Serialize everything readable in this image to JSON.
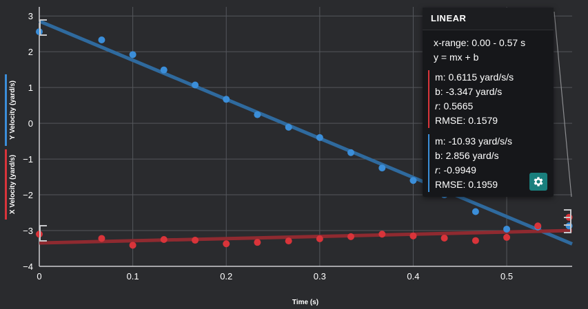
{
  "chart_data": {
    "type": "scatter",
    "xlabel": "Time (s)",
    "xlim": [
      0,
      0.57
    ],
    "ylim": [
      -4,
      3.1
    ],
    "x_ticks": [
      "0",
      "0.1",
      "0.2",
      "0.3",
      "0.4",
      "0.5"
    ],
    "y_ticks": [
      "3",
      "2",
      "1",
      "0",
      "−1",
      "−2",
      "−3",
      "−4"
    ],
    "grid": true,
    "series": [
      {
        "name": "Y Velocity  (yard/s)",
        "color": "#3b8ed9",
        "points": [
          [
            0.0,
            2.56
          ],
          [
            0.0667,
            2.33
          ],
          [
            0.1,
            1.92
          ],
          [
            0.1333,
            1.49
          ],
          [
            0.1667,
            1.07
          ],
          [
            0.2,
            0.67
          ],
          [
            0.2333,
            0.24
          ],
          [
            0.2667,
            -0.11
          ],
          [
            0.3,
            -0.4
          ],
          [
            0.3333,
            -0.82
          ],
          [
            0.3667,
            -1.25
          ],
          [
            0.4,
            -1.6
          ],
          [
            0.4333,
            -2.0
          ],
          [
            0.4667,
            -2.47
          ],
          [
            0.5,
            -2.96
          ],
          [
            0.5333,
            -2.9
          ],
          [
            0.5667,
            -2.87
          ]
        ],
        "fit": {
          "m": -10.93,
          "b": 2.856
        }
      },
      {
        "name": "X Velocity  (yard/s)",
        "color": "#d9343a",
        "points": [
          [
            0.0,
            -3.1
          ],
          [
            0.0667,
            -3.22
          ],
          [
            0.1,
            -3.41
          ],
          [
            0.1333,
            -3.25
          ],
          [
            0.1667,
            -3.27
          ],
          [
            0.2,
            -3.37
          ],
          [
            0.2333,
            -3.33
          ],
          [
            0.2667,
            -3.29
          ],
          [
            0.3,
            -3.23
          ],
          [
            0.3333,
            -3.17
          ],
          [
            0.3667,
            -3.1
          ],
          [
            0.4,
            -3.15
          ],
          [
            0.4333,
            -3.21
          ],
          [
            0.4667,
            -3.28
          ],
          [
            0.5,
            -3.19
          ],
          [
            0.5333,
            -2.87
          ],
          [
            0.5667,
            -2.63
          ]
        ],
        "fit": {
          "m": 0.6115,
          "b": -3.347
        }
      }
    ]
  },
  "panel": {
    "title": "LINEAR",
    "range": "x-range: 0.00 - 0.57 s",
    "equation": "y = mx + b",
    "fits": [
      {
        "m": "m: 0.6115 yard/s/s",
        "b": "b: -3.347 yard/s",
        "r_label": "r",
        "r_value": ": 0.5665",
        "rmse": "RMSE: 0.1579",
        "color": "#d9343a"
      },
      {
        "m": "m: -10.93 yard/s/s",
        "b": "b: 2.856 yard/s",
        "r_label": "r",
        "r_value": ": -0.9949",
        "rmse": "RMSE: 0.1959",
        "color": "#3b8ed9"
      }
    ],
    "settings_icon": "gear-icon"
  },
  "colors": {
    "background": "#2a2b2e",
    "grid": "#55575c",
    "fit_blue": "#2f6a9e",
    "fit_red": "#8f2a30"
  }
}
